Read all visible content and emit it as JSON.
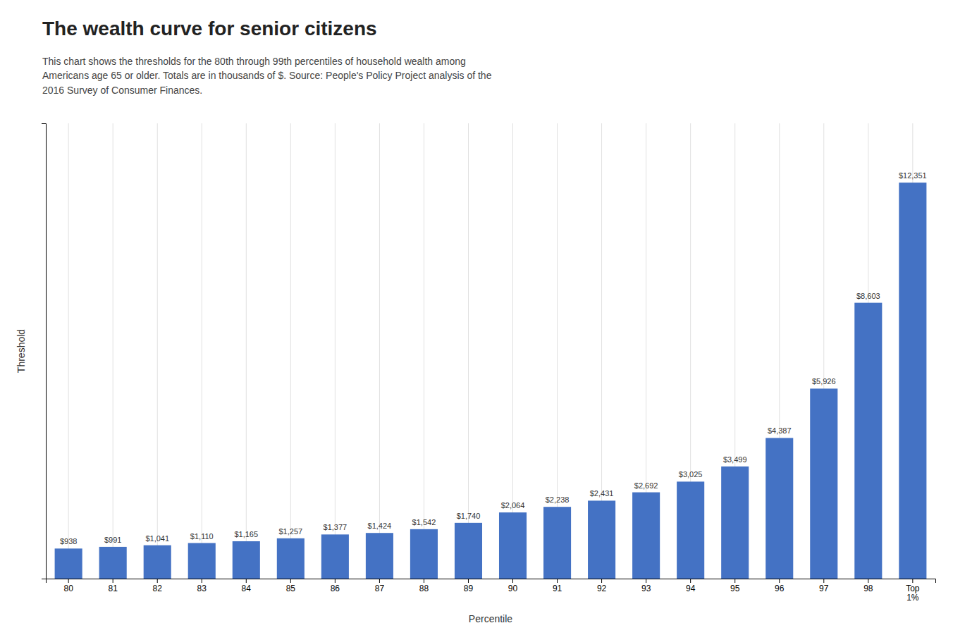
{
  "chart_data": {
    "type": "bar",
    "title": "The wealth curve for senior citizens",
    "subtitle": "This chart shows the thresholds for the 80th through 99th percentiles of household wealth among\nAmericans age 65 or older. Totals are in thousands of $. Source: People's Policy Project analysis of the\n2016 Survey of Consumer Finances.",
    "xlabel": "Percentile",
    "ylabel": "Threshold",
    "categories": [
      "80",
      "81",
      "82",
      "83",
      "84",
      "85",
      "86",
      "87",
      "88",
      "89",
      "90",
      "91",
      "92",
      "93",
      "94",
      "95",
      "96",
      "97",
      "98",
      "Top\n1%"
    ],
    "values": [
      938,
      991,
      1041,
      1110,
      1165,
      1257,
      1377,
      1424,
      1542,
      1740,
      2064,
      2238,
      2431,
      2692,
      3025,
      3499,
      4387,
      5926,
      8603,
      12351
    ],
    "value_labels": [
      "$938",
      "$991",
      "$1,041",
      "$1,110",
      "$1,165",
      "$1,257",
      "$1,377",
      "$1,424",
      "$1,542",
      "$1,740",
      "$2,064",
      "$2,238",
      "$2,431",
      "$2,692",
      "$3,025",
      "$3,499",
      "$4,387",
      "$5,926",
      "$8,603",
      "$12,351"
    ],
    "color": "#4472C4",
    "ylim": [
      0,
      14200
    ],
    "yticks": [],
    "grid": true,
    "data_labels": true,
    "tick_labels": "x"
  }
}
